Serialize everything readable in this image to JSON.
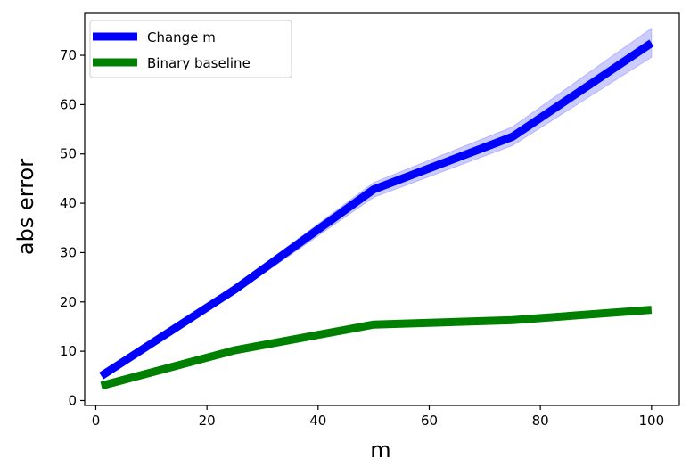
{
  "chart_data": {
    "type": "line",
    "title": "",
    "xlabel": "m",
    "ylabel": "abs error",
    "xlim": [
      -2,
      105
    ],
    "ylim": [
      -1,
      78.5
    ],
    "xticks": [
      0,
      20,
      40,
      60,
      80,
      100
    ],
    "yticks": [
      0,
      10,
      20,
      30,
      40,
      50,
      60,
      70
    ],
    "grid": false,
    "legend_position": "top-left",
    "series": [
      {
        "name": "Change m",
        "color": "#0000ff",
        "band_color": "#0000ff",
        "x": [
          1,
          25,
          50,
          75,
          100
        ],
        "y": [
          5,
          22.5,
          42.8,
          53.5,
          72.5
        ],
        "y_lower": [
          5,
          21.7,
          41.2,
          51.7,
          69.6
        ],
        "y_upper": [
          5,
          23.2,
          44.2,
          55.5,
          75.5
        ]
      },
      {
        "name": "Binary baseline",
        "color": "#008000",
        "x": [
          1,
          25,
          50,
          75,
          100
        ],
        "y": [
          3,
          10.2,
          15.4,
          16.3,
          18.4
        ]
      }
    ]
  }
}
